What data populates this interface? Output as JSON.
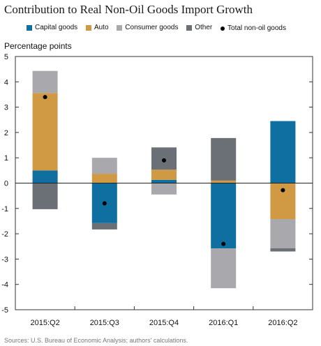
{
  "title": "Contribution to Real Non-Oil Goods Import Growth",
  "source": "Sources: U.S. Bureau of Economic Analysis; authors' calculations.",
  "chart_data": {
    "type": "bar",
    "stacked": true,
    "title": "Contribution to Real Non-Oil Goods Import Growth",
    "ylabel": "Percentage points",
    "xlabel": "",
    "ylim": [
      -5,
      5
    ],
    "yticks": [
      5,
      4,
      3,
      2,
      1,
      0,
      -1,
      -2,
      -3,
      -4,
      -5
    ],
    "grid": false,
    "legend_position": "top",
    "categories": [
      "2015:Q2",
      "2015:Q3",
      "2015:Q4",
      "2016:Q1",
      "2016:Q2"
    ],
    "series": [
      {
        "name": "Capital goods",
        "color": "#0e6fa0",
        "values": [
          0.5,
          -1.58,
          0.13,
          -2.58,
          2.45
        ]
      },
      {
        "name": "Auto",
        "color": "#d09a45",
        "values": [
          3.06,
          0.37,
          0.4,
          0.1,
          -1.42
        ]
      },
      {
        "name": "Consumer goods",
        "color": "#a9a9ad",
        "values": [
          0.87,
          0.63,
          -0.45,
          -1.57,
          -1.15
        ]
      },
      {
        "name": "Other",
        "color": "#6b7076",
        "values": [
          -1.03,
          -0.25,
          0.88,
          1.68,
          -0.13
        ]
      }
    ],
    "total": {
      "name": "Total non-oil goods",
      "color": "#000000",
      "values": [
        3.4,
        -0.8,
        0.9,
        -2.4,
        -0.28
      ]
    }
  }
}
